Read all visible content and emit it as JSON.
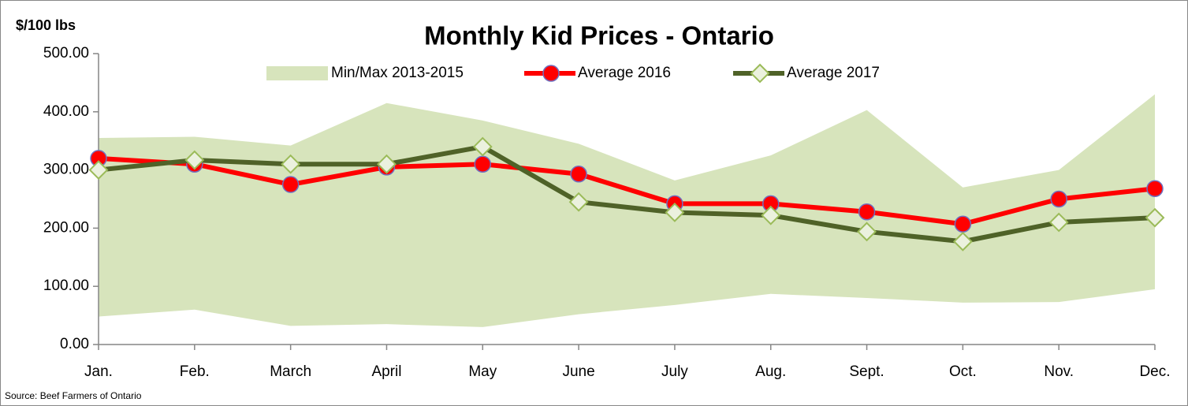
{
  "chart_data": {
    "type": "line",
    "title": "Monthly Kid Prices - Ontario",
    "y_label": "$/100 lbs",
    "source": "Source: Beef Farmers of Ontario",
    "categories": [
      "Jan.",
      "Feb.",
      "March",
      "April",
      "May",
      "June",
      "July",
      "Aug.",
      "Sept.",
      "Oct.",
      "Nov.",
      "Dec."
    ],
    "ylim": [
      0,
      500
    ],
    "yticks": [
      {
        "value": 0,
        "label": "0.00"
      },
      {
        "value": 100,
        "label": "100.00"
      },
      {
        "value": 200,
        "label": "200.00"
      },
      {
        "value": 300,
        "label": "300.00"
      },
      {
        "value": 400,
        "label": "400.00"
      },
      {
        "value": 500,
        "label": "500.00"
      }
    ],
    "grid": false,
    "legend": "top",
    "series": [
      {
        "name": "Min/Max 2013-2015",
        "type": "range",
        "color": "#d7e4bc",
        "lower": [
          48,
          60,
          32,
          35,
          30,
          52,
          68,
          87,
          80,
          72,
          73,
          95
        ],
        "upper": [
          355,
          357,
          342,
          415,
          385,
          345,
          282,
          325,
          403,
          270,
          300,
          430
        ]
      },
      {
        "name": "Average 2016",
        "type": "line",
        "color": "#ff0000",
        "marker": "circle",
        "marker_fill": "#ff0000",
        "marker_stroke": "#7070c0",
        "values": [
          320,
          310,
          275,
          305,
          310,
          293,
          242,
          242,
          228,
          207,
          250,
          268
        ]
      },
      {
        "name": "Average 2017",
        "type": "line",
        "color": "#4f6228",
        "marker": "diamond",
        "marker_fill": "#ebf1de",
        "marker_stroke": "#9bbb59",
        "values": [
          300,
          317,
          310,
          310,
          340,
          245,
          227,
          222,
          194,
          177,
          210,
          218
        ]
      }
    ]
  }
}
